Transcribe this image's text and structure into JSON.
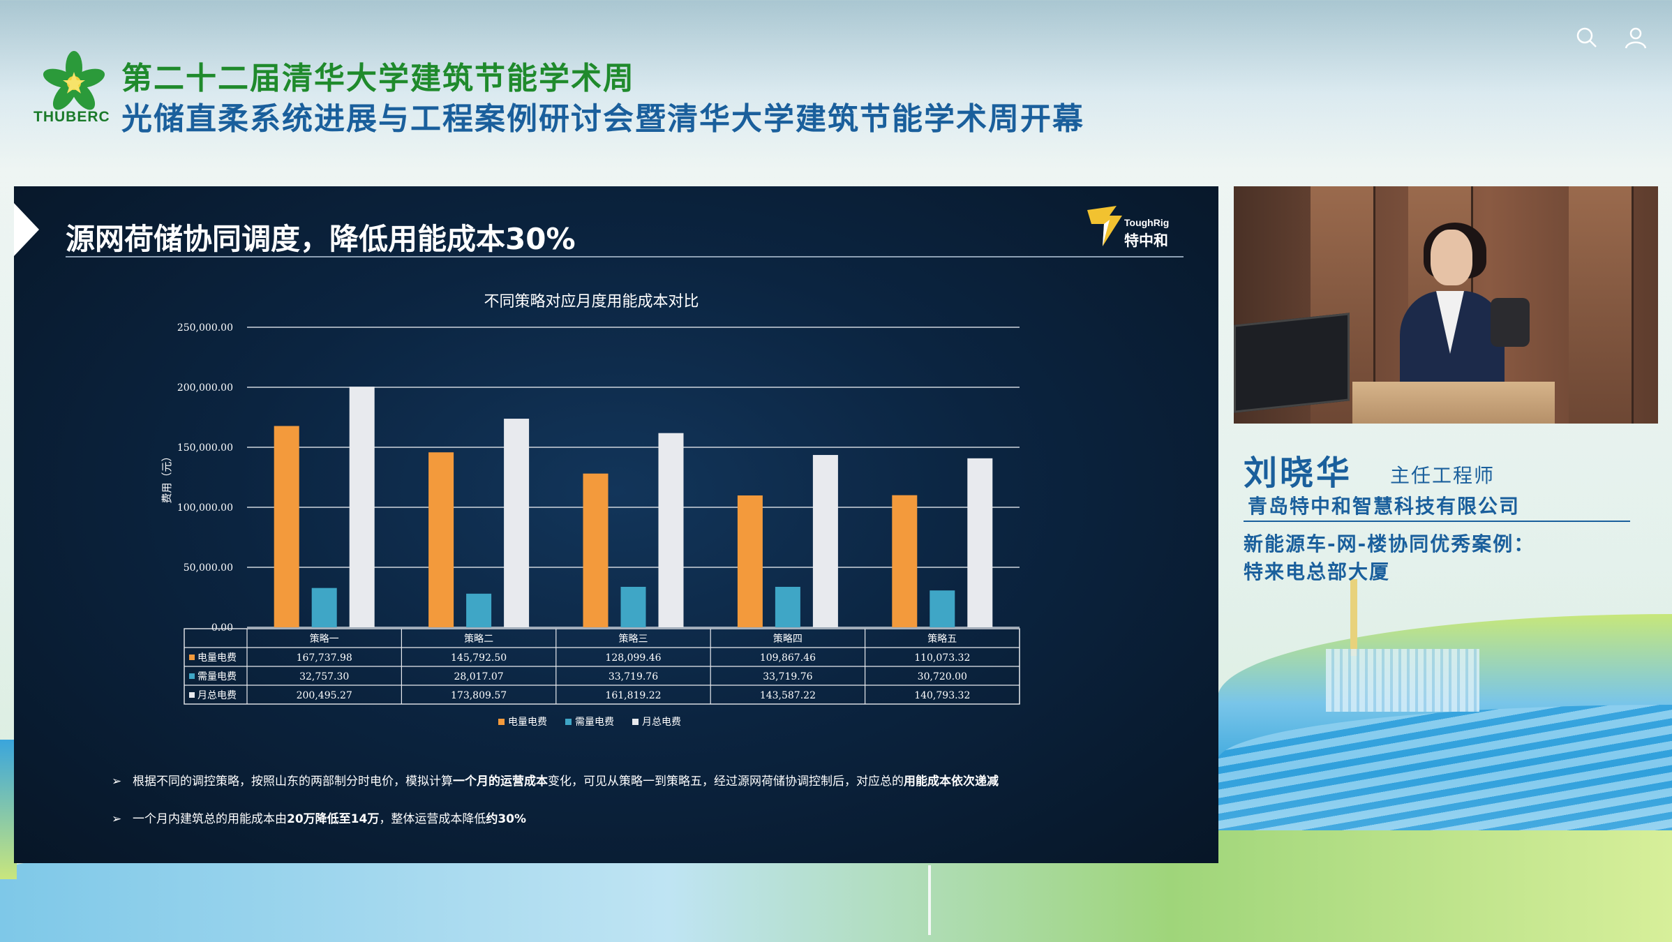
{
  "header": {
    "logo_text": "THUBERC",
    "title_line1": "第二十二届清华大学建筑节能学术周",
    "title_line2": "光储直柔系统进展与工程案例研讨会暨清华大学建筑节能学术周开幕",
    "search_icon": "search-icon",
    "user_icon": "user-icon"
  },
  "slide": {
    "title": "源网荷储协同调度，降低用能成本30%",
    "brand_en": "ToughRig",
    "brand_cn": "特中和",
    "bullets": [
      {
        "marker": "➢",
        "parts": [
          {
            "text": "根据不同的调控策略，按照山东的两部制分时电价，模拟计算",
            "bold": false
          },
          {
            "text": "一个月的运营成本",
            "bold": true
          },
          {
            "text": "变化，可见从策略一到策略五，经过源网荷储协调控制后，对应总的",
            "bold": false
          },
          {
            "text": "用能成本依次递减",
            "bold": true
          }
        ]
      },
      {
        "marker": "➢",
        "parts": [
          {
            "text": "一个月内建筑总的用能成本由",
            "bold": false
          },
          {
            "text": "20万降低至14万",
            "bold": true
          },
          {
            "text": "，整体运营成本降低",
            "bold": false
          },
          {
            "text": "约30%",
            "bold": true
          }
        ]
      }
    ]
  },
  "chart_data": {
    "type": "bar",
    "title": "不同策略对应月度用能成本对比",
    "ylabel": "费用（元）",
    "xlabel": "",
    "ylim": [
      0,
      250000
    ],
    "yticks": [
      "0.00",
      "50,000.00",
      "100,000.00",
      "150,000.00",
      "200,000.00",
      "250,000.00"
    ],
    "grid": true,
    "legend_position": "bottom",
    "categories": [
      "策略一",
      "策略二",
      "策略三",
      "策略四",
      "策略五"
    ],
    "series": [
      {
        "name": "电量电费",
        "color": "#f39a3c",
        "values": [
          167737.98,
          145792.5,
          128099.46,
          109867.46,
          110073.32
        ],
        "labels": [
          "167,737.98",
          "145,792.50",
          "128,099.46",
          "109,867.46",
          "110,073.32"
        ]
      },
      {
        "name": "需量电费",
        "color": "#3fa6c6",
        "values": [
          32757.3,
          28017.07,
          33719.76,
          33719.76,
          30720.0
        ],
        "labels": [
          "32,757.30",
          "28,017.07",
          "33,719.76",
          "33,719.76",
          "30,720.00"
        ]
      },
      {
        "name": "月总电费",
        "color": "#e8eaee",
        "values": [
          200495.27,
          173809.57,
          161819.22,
          143587.22,
          140793.32
        ],
        "labels": [
          "200,495.27",
          "173,809.57",
          "161,819.22",
          "143,587.22",
          "140,793.32"
        ]
      }
    ]
  },
  "speaker": {
    "name": "刘晓华",
    "title": "主任工程师",
    "organization": "青岛特中和智慧科技有限公司",
    "topic_line1": "新能源车-网-楼协同优秀案例：",
    "topic_line2": "特来电总部大厦"
  }
}
